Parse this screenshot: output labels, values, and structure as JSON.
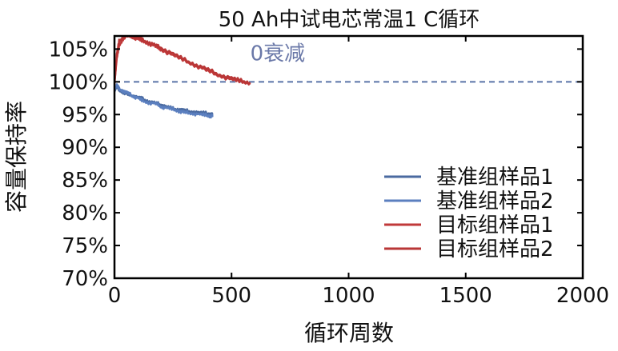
{
  "chart_data": {
    "type": "line",
    "title": "50 Ah中试电芯常温1 C循环",
    "xlabel": "循环周数",
    "ylabel": "容量保持率",
    "xlim": [
      0,
      2000
    ],
    "ylim": [
      70,
      107
    ],
    "x_ticks": [
      0,
      500,
      1000,
      1500,
      2000
    ],
    "x_tick_labels": [
      "0",
      "500",
      "1000",
      "1500",
      "2000"
    ],
    "y_ticks": [
      70,
      75,
      80,
      85,
      90,
      95,
      100,
      105
    ],
    "y_tick_labels": [
      "70%",
      "75%",
      "80%",
      "85%",
      "90%",
      "95%",
      "100%",
      "105%"
    ],
    "grid": false,
    "legend_position": "bottom-right",
    "reference_line": {
      "y": 100,
      "color": "#5a74a8",
      "style": "dashed"
    },
    "annotation": {
      "text": "0衰减",
      "x": 580,
      "y": 103.3,
      "color": "#6a78a8"
    },
    "series": [
      {
        "name": "基准组样品1",
        "color": "#4a6aa0",
        "x": [
          0,
          10,
          20,
          40,
          60,
          80,
          100,
          120,
          150,
          180,
          200,
          220,
          250,
          280,
          300,
          330,
          360,
          390,
          410,
          420
        ],
        "y": [
          98.5,
          99.3,
          98.7,
          98.4,
          98.0,
          97.9,
          97.6,
          97.4,
          97.0,
          96.7,
          96.5,
          96.2,
          95.9,
          95.8,
          95.6,
          95.5,
          95.3,
          95.2,
          95.1,
          95.0
        ]
      },
      {
        "name": "基准组样品2",
        "color": "#5b7fbf",
        "x": [
          0,
          10,
          20,
          40,
          60,
          80,
          100,
          120,
          150,
          180,
          200,
          220,
          250,
          280,
          300,
          330,
          360,
          390,
          410,
          420
        ],
        "y": [
          98.8,
          99.5,
          98.9,
          98.6,
          98.2,
          97.8,
          97.5,
          97.1,
          96.8,
          96.6,
          96.2,
          96.0,
          95.8,
          95.5,
          95.3,
          95.2,
          95.0,
          94.9,
          94.8,
          94.8
        ]
      },
      {
        "name": "目标组样品1",
        "color": "#c0393a",
        "x": [
          0,
          10,
          20,
          40,
          60,
          80,
          100,
          120,
          150,
          180,
          200,
          250,
          300,
          350,
          400,
          450,
          500,
          540,
          580
        ],
        "y": [
          100.0,
          103.5,
          105.5,
          106.8,
          107.0,
          106.8,
          106.5,
          106.2,
          105.8,
          105.3,
          104.9,
          104.0,
          103.2,
          102.4,
          101.6,
          100.9,
          100.3,
          100.0,
          99.8
        ]
      },
      {
        "name": "目标组样品2",
        "color": "#b93636",
        "x": [
          0,
          10,
          20,
          40,
          60,
          80,
          100,
          120,
          150,
          180,
          200,
          250,
          300,
          350,
          400,
          450,
          500,
          540,
          580
        ],
        "y": [
          99.6,
          104.2,
          106.2,
          107.0,
          107.0,
          107.0,
          106.8,
          106.4,
          106.0,
          105.5,
          105.2,
          104.3,
          103.4,
          102.6,
          101.9,
          101.1,
          100.6,
          100.2,
          99.9
        ]
      }
    ]
  }
}
